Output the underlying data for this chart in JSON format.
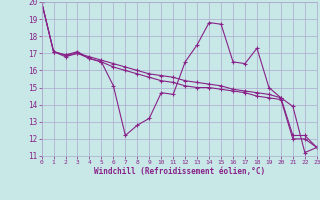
{
  "background_color": "#c8e8e8",
  "grid_color": "#aaaacc",
  "line_color": "#882288",
  "xlabel": "Windchill (Refroidissement éolien,°C)",
  "xlim": [
    0,
    23
  ],
  "ylim": [
    11,
    20
  ],
  "xticks": [
    0,
    1,
    2,
    3,
    4,
    5,
    6,
    7,
    8,
    9,
    10,
    11,
    12,
    13,
    14,
    15,
    16,
    17,
    18,
    19,
    20,
    21,
    22,
    23
  ],
  "yticks": [
    11,
    12,
    13,
    14,
    15,
    16,
    17,
    18,
    19,
    20
  ],
  "line1_x": [
    0,
    1,
    2,
    3,
    4,
    5,
    6,
    7,
    8,
    9,
    10,
    11,
    12,
    13,
    14,
    15,
    16,
    17,
    18,
    19,
    20,
    21,
    22,
    23
  ],
  "line1_y": [
    20,
    17.1,
    16.9,
    17.1,
    16.7,
    16.5,
    15.1,
    12.2,
    12.8,
    13.2,
    14.7,
    14.6,
    16.5,
    17.5,
    18.8,
    18.7,
    16.5,
    16.4,
    17.3,
    15.0,
    14.4,
    13.9,
    11.2,
    11.5
  ],
  "line2_x": [
    0,
    1,
    2,
    3,
    4,
    5,
    6,
    7,
    8,
    9,
    10,
    11,
    12,
    13,
    14,
    15,
    16,
    17,
    18,
    19,
    20,
    21,
    22,
    23
  ],
  "line2_y": [
    20,
    17.1,
    16.8,
    17.0,
    16.7,
    16.5,
    16.2,
    16.0,
    15.8,
    15.6,
    15.4,
    15.3,
    15.1,
    15.0,
    15.0,
    14.9,
    14.8,
    14.7,
    14.5,
    14.4,
    14.3,
    12.0,
    12.0,
    11.5
  ],
  "line3_x": [
    0,
    1,
    2,
    3,
    4,
    5,
    6,
    7,
    8,
    9,
    10,
    11,
    12,
    13,
    14,
    15,
    16,
    17,
    18,
    19,
    20,
    21,
    22,
    23
  ],
  "line3_y": [
    20,
    17.1,
    16.9,
    17.0,
    16.8,
    16.6,
    16.4,
    16.2,
    16.0,
    15.8,
    15.7,
    15.6,
    15.4,
    15.3,
    15.2,
    15.1,
    14.9,
    14.8,
    14.7,
    14.6,
    14.4,
    12.2,
    12.2,
    11.5
  ]
}
